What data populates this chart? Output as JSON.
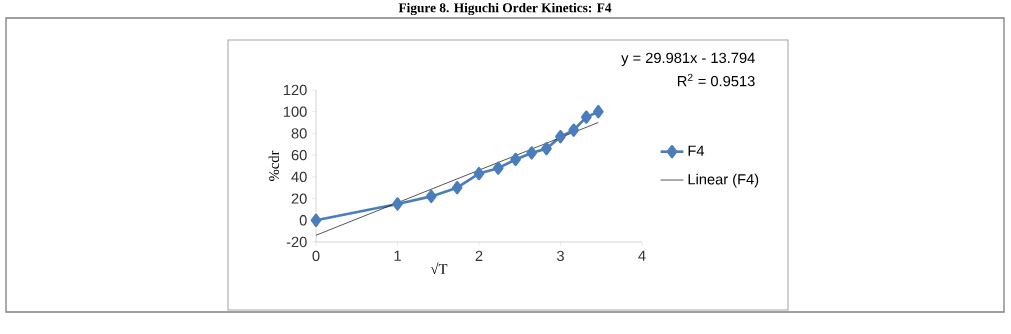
{
  "chart_data": {
    "type": "line",
    "title": "Figure 8. Higuchi Order Kinetics: F4",
    "xlabel": "√T",
    "ylabel": "%cdr",
    "annotations": [
      "y = 29.981x - 13.794",
      "R$^{2}$ = 0.9513"
    ],
    "xlim": [
      0,
      4
    ],
    "xticks": [
      0,
      1,
      2,
      3,
      4
    ],
    "ylim": [
      -20,
      120
    ],
    "yticks": [
      -20,
      0,
      20,
      40,
      60,
      80,
      100,
      120
    ],
    "legend": "right",
    "marker": "diamond",
    "series": [
      {
        "name": "F4",
        "color": "#4a7ebb",
        "x": [
          0,
          1,
          1.414,
          1.732,
          2,
          2.236,
          2.449,
          2.646,
          2.828,
          3,
          3.162,
          3.317,
          3.464
        ],
        "values": [
          0,
          15,
          22,
          30,
          43,
          48,
          56,
          62,
          66,
          77,
          83,
          95,
          100
        ]
      },
      {
        "name": "Linear (F4)",
        "color": "#000000",
        "marker": "none",
        "x": [
          0,
          3.464
        ],
        "values": [
          -13.794,
          90.06
        ]
      }
    ]
  }
}
